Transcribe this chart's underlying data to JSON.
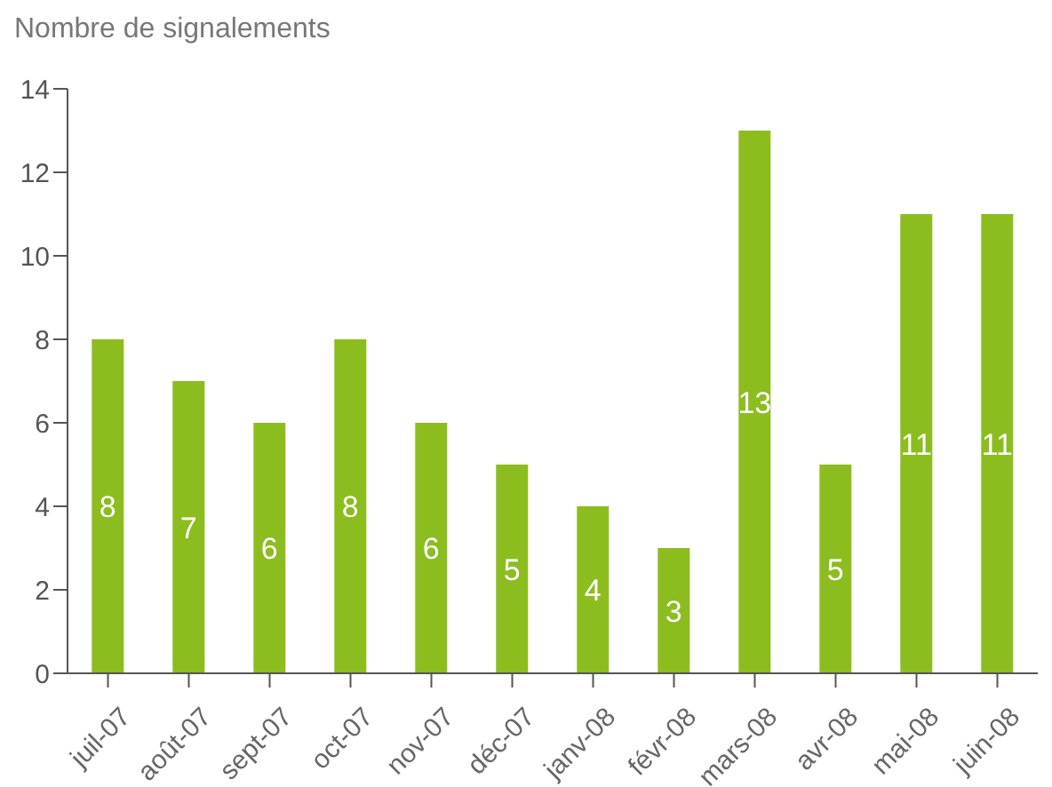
{
  "chart_data": {
    "type": "bar",
    "ylabel": "Nombre de signalements",
    "categories": [
      "juil-07",
      "août-07",
      "sept-07",
      "oct-07",
      "nov-07",
      "déc-07",
      "janv-08",
      "févr-08",
      "mars-08",
      "avr-08",
      "mai-08",
      "juin-08"
    ],
    "values": [
      8,
      7,
      6,
      8,
      6,
      5,
      4,
      3,
      13,
      5,
      11,
      11
    ],
    "color": "#8cbd1f",
    "ylim": [
      0,
      14
    ],
    "yticks": [
      0,
      2,
      4,
      6,
      8,
      10,
      12,
      14
    ],
    "grid": false,
    "data_labels": true
  }
}
